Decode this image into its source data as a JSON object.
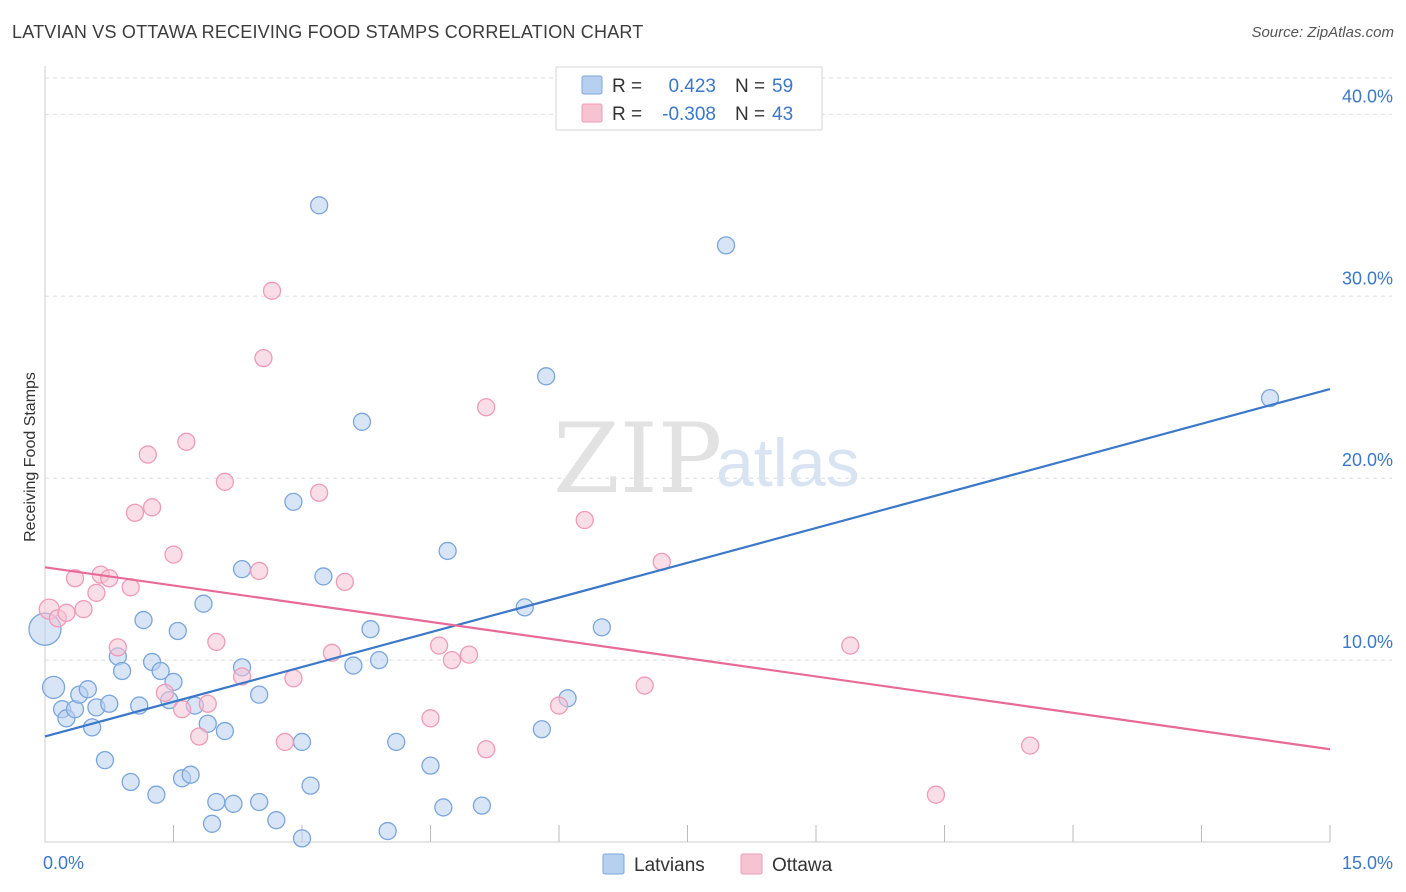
{
  "header": {
    "title": "LATVIAN VS OTTAWA RECEIVING FOOD STAMPS CORRELATION CHART",
    "source": "Source: ZipAtlas.com"
  },
  "watermark": {
    "zip": "ZIP",
    "atlas": "atlas"
  },
  "colors": {
    "blue": "#3b78c8",
    "blue_fill": "#b8d0f0",
    "blue_stroke": "#7aa6dc",
    "pink": "#e86a97",
    "pink_fill": "#f6c3d3",
    "pink_stroke": "#ef9bb8",
    "grid": "#dddddd"
  },
  "legend": {
    "rows": [
      {
        "r_label": "R =",
        "r_value": "0.423",
        "n_label": "N =",
        "n_value": "59"
      },
      {
        "r_label": "R =",
        "r_value": "-0.308",
        "n_label": "N =",
        "n_value": "43"
      }
    ]
  },
  "bottom_legend": [
    "Latvians",
    "Ottawa"
  ],
  "chart_data": {
    "type": "scatter",
    "xlabel": "",
    "ylabel": "Receiving Food Stamps",
    "xlim": [
      0,
      15
    ],
    "ylim": [
      0,
      42
    ],
    "x_tick_labels": [
      "0.0%",
      "15.0%"
    ],
    "y_ticks": [
      10,
      20,
      30,
      40
    ],
    "y_tick_labels": [
      "10.0%",
      "20.0%",
      "30.0%",
      "40.0%"
    ],
    "grid": true,
    "series": [
      {
        "name": "Latvians",
        "color": "#3b78c8",
        "trend": {
          "x": [
            0,
            15
          ],
          "y": [
            5.8,
            24.9
          ]
        },
        "points": [
          [
            0.0,
            11.7
          ],
          [
            0.1,
            8.5
          ],
          [
            0.2,
            7.3
          ],
          [
            0.25,
            6.8
          ],
          [
            0.35,
            7.3
          ],
          [
            0.4,
            8.1
          ],
          [
            0.5,
            8.4
          ],
          [
            0.55,
            6.3
          ],
          [
            0.6,
            7.4
          ],
          [
            0.7,
            4.5
          ],
          [
            0.75,
            7.6
          ],
          [
            0.85,
            10.2
          ],
          [
            0.9,
            9.4
          ],
          [
            1.0,
            3.3
          ],
          [
            1.1,
            7.5
          ],
          [
            1.15,
            12.2
          ],
          [
            1.25,
            9.9
          ],
          [
            1.3,
            2.6
          ],
          [
            1.35,
            9.4
          ],
          [
            1.45,
            7.8
          ],
          [
            1.5,
            8.8
          ],
          [
            1.55,
            11.6
          ],
          [
            1.6,
            3.5
          ],
          [
            1.7,
            3.7
          ],
          [
            1.75,
            7.5
          ],
          [
            1.85,
            13.1
          ],
          [
            1.9,
            6.5
          ],
          [
            1.95,
            1.0
          ],
          [
            2.0,
            2.2
          ],
          [
            2.1,
            6.1
          ],
          [
            2.2,
            2.1
          ],
          [
            2.3,
            9.6
          ],
          [
            2.3,
            15.0
          ],
          [
            2.5,
            2.2
          ],
          [
            2.5,
            8.1
          ],
          [
            2.7,
            1.2
          ],
          [
            2.9,
            18.7
          ],
          [
            3.0,
            5.5
          ],
          [
            3.0,
            0.2
          ],
          [
            3.1,
            3.1
          ],
          [
            3.2,
            35.0
          ],
          [
            3.25,
            14.6
          ],
          [
            3.6,
            9.7
          ],
          [
            3.7,
            23.1
          ],
          [
            3.8,
            11.7
          ],
          [
            3.9,
            10.0
          ],
          [
            4.0,
            0.6
          ],
          [
            4.1,
            5.5
          ],
          [
            4.5,
            4.2
          ],
          [
            4.65,
            1.9
          ],
          [
            4.7,
            16.0
          ],
          [
            5.1,
            2.0
          ],
          [
            5.6,
            12.9
          ],
          [
            5.8,
            6.2
          ],
          [
            5.85,
            25.6
          ],
          [
            6.1,
            7.9
          ],
          [
            6.5,
            11.8
          ],
          [
            7.95,
            32.8
          ],
          [
            14.3,
            24.4
          ]
        ]
      },
      {
        "name": "Ottawa",
        "color": "#e86a97",
        "trend": {
          "x": [
            0,
            15
          ],
          "y": [
            15.1,
            5.1
          ]
        },
        "points": [
          [
            0.05,
            12.8
          ],
          [
            0.15,
            12.3
          ],
          [
            0.25,
            12.6
          ],
          [
            0.35,
            14.5
          ],
          [
            0.45,
            12.8
          ],
          [
            0.6,
            13.7
          ],
          [
            0.65,
            14.7
          ],
          [
            0.75,
            14.5
          ],
          [
            0.85,
            10.7
          ],
          [
            1.0,
            14.0
          ],
          [
            1.05,
            18.1
          ],
          [
            1.2,
            21.3
          ],
          [
            1.25,
            18.4
          ],
          [
            1.4,
            8.2
          ],
          [
            1.5,
            15.8
          ],
          [
            1.6,
            7.3
          ],
          [
            1.65,
            22.0
          ],
          [
            1.8,
            5.8
          ],
          [
            1.9,
            7.6
          ],
          [
            2.0,
            11.0
          ],
          [
            2.1,
            19.8
          ],
          [
            2.3,
            9.1
          ],
          [
            2.5,
            14.9
          ],
          [
            2.55,
            26.6
          ],
          [
            2.65,
            30.3
          ],
          [
            2.8,
            5.5
          ],
          [
            2.9,
            9.0
          ],
          [
            3.2,
            19.2
          ],
          [
            3.35,
            10.4
          ],
          [
            3.5,
            14.3
          ],
          [
            4.5,
            6.8
          ],
          [
            4.6,
            10.8
          ],
          [
            4.75,
            10.0
          ],
          [
            4.95,
            10.3
          ],
          [
            5.15,
            5.1
          ],
          [
            5.15,
            23.9
          ],
          [
            6.0,
            7.5
          ],
          [
            6.3,
            17.7
          ],
          [
            7.0,
            8.6
          ],
          [
            7.2,
            15.4
          ],
          [
            9.4,
            10.8
          ],
          [
            10.4,
            2.6
          ],
          [
            11.5,
            5.3
          ]
        ]
      }
    ]
  }
}
